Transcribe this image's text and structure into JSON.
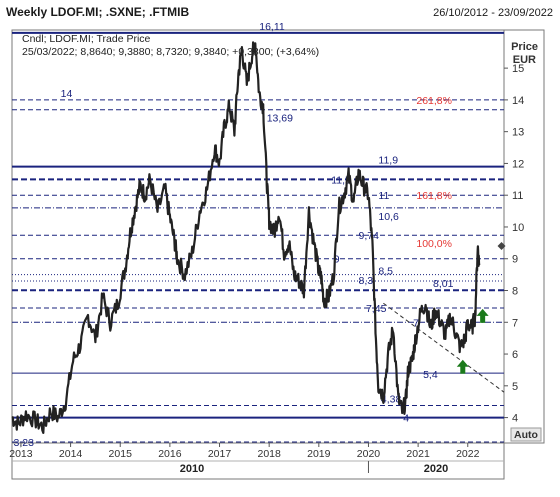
{
  "header": {
    "title": "Weekly LDOF.MI; .SXNE; .FTMIB",
    "date_range": "26/10/2012 - 23/09/2022"
  },
  "legend": {
    "line1": "Cndl; LDOF.MI; Trade Price",
    "line2": "25/03/2022; 8,8640; 9,3880; 8,7320; 9,3840; +0,3300; (+3,64%)"
  },
  "axis": {
    "y_title_1": "Price",
    "y_title_2": "EUR",
    "auto_label": "Auto"
  },
  "colors": {
    "background": "#ffffff",
    "frame": "#7a7a7a",
    "price_line": "#222222",
    "level_line": "#1a237e",
    "level_label": "#1a237e",
    "fib_label": "#e53935",
    "arrow": "#1b7a1b",
    "diamond": "#444444",
    "trendline": "#333333"
  },
  "chart_data": {
    "type": "line",
    "title": "Weekly LDOF.MI; .SXNE; .FTMIB",
    "ylabel": "Price EUR",
    "ylim": [
      3.2,
      16.2
    ],
    "xlim": [
      2012.82,
      2022.73
    ],
    "y_ticks": [
      4,
      5,
      6,
      7,
      8,
      9,
      10,
      11,
      12,
      13,
      14,
      15
    ],
    "x_ticks": [
      {
        "x": 2013,
        "label": "2013"
      },
      {
        "x": 2014,
        "label": "2014"
      },
      {
        "x": 2015,
        "label": "2015"
      },
      {
        "x": 2016,
        "label": "2016"
      },
      {
        "x": 2017,
        "label": "2017"
      },
      {
        "x": 2018,
        "label": "2018"
      },
      {
        "x": 2019,
        "label": "2019"
      },
      {
        "x": 2020,
        "label": "2020"
      },
      {
        "x": 2021,
        "label": "2021"
      },
      {
        "x": 2022,
        "label": "2022"
      }
    ],
    "x_major_labels": [
      {
        "x": 2010,
        "label": "2010"
      },
      {
        "x": 2020,
        "label": "2020"
      }
    ],
    "series": [
      {
        "x": [
          2012.82,
          2012.95,
          2013.1,
          2013.3,
          2013.45,
          2013.6,
          2013.75,
          2013.9,
          2014.05,
          2014.2,
          2014.35,
          2014.5,
          2014.65,
          2014.8,
          2014.95,
          2015.1,
          2015.2,
          2015.3,
          2015.4,
          2015.5,
          2015.6,
          2015.75,
          2015.9,
          2016.0,
          2016.1,
          2016.15,
          2016.3,
          2016.45,
          2016.6,
          2016.75,
          2016.9,
          2017.0,
          2017.1,
          2017.2,
          2017.3,
          2017.38,
          2017.45,
          2017.55,
          2017.65,
          2017.72,
          2017.8,
          2017.88,
          2017.95,
          2018.0,
          2018.1,
          2018.2,
          2018.3,
          2018.4,
          2018.5,
          2018.6,
          2018.7,
          2018.8,
          2018.9,
          2019.0,
          2019.05,
          2019.1,
          2019.2,
          2019.3,
          2019.4,
          2019.5,
          2019.6,
          2019.7,
          2019.8,
          2019.9,
          2020.0,
          2020.08,
          2020.15,
          2020.2,
          2020.3,
          2020.4,
          2020.5,
          2020.6,
          2020.68,
          2020.75,
          2020.8,
          2020.88,
          2020.95,
          2021.05,
          2021.15,
          2021.25,
          2021.35,
          2021.45,
          2021.55,
          2021.65,
          2021.75,
          2021.85,
          2021.95,
          2022.0,
          2022.08,
          2022.15,
          2022.2,
          2022.23
        ],
        "y": [
          4.0,
          3.8,
          4.1,
          3.9,
          3.7,
          4.2,
          4.0,
          4.5,
          5.8,
          6.3,
          7.2,
          6.5,
          7.8,
          7.0,
          7.6,
          8.7,
          9.8,
          10.6,
          11.3,
          11.0,
          11.5,
          10.5,
          11.2,
          10.3,
          9.5,
          9.0,
          8.5,
          9.2,
          10.5,
          11.2,
          12.5,
          12.0,
          13.2,
          13.8,
          13.0,
          14.8,
          15.6,
          14.5,
          15.4,
          15.8,
          14.2,
          13.8,
          11.5,
          10.2,
          9.8,
          10.5,
          9.2,
          9.5,
          8.5,
          8.3,
          8.0,
          10.5,
          9.5,
          8.6,
          8.4,
          7.7,
          7.8,
          8.5,
          10.6,
          11.0,
          11.6,
          10.8,
          11.7,
          11.3,
          11.0,
          9.4,
          6.5,
          5.0,
          4.7,
          6.0,
          6.8,
          4.6,
          4.2,
          4.5,
          5.5,
          5.8,
          6.5,
          7.3,
          7.6,
          6.8,
          7.4,
          7.0,
          6.6,
          7.2,
          6.7,
          6.2,
          6.5,
          7.0,
          6.8,
          7.2,
          9.4,
          8.8
        ]
      }
    ],
    "levels": [
      {
        "y": 16.11,
        "label": "16,11",
        "style": "thick"
      },
      {
        "y": 14.0,
        "label": "14",
        "style": "dash"
      },
      {
        "y": 13.69,
        "label": "13,69",
        "style": "dash"
      },
      {
        "y": 11.9,
        "label": "11,9",
        "style": "thick"
      },
      {
        "y": 11.5,
        "label": "11,5",
        "style": "thickdash"
      },
      {
        "y": 11.0,
        "label": "11",
        "style": "dash"
      },
      {
        "y": 10.6,
        "label": "10,6",
        "style": "dashdot"
      },
      {
        "y": 9.74,
        "label": "9,74",
        "style": "dash"
      },
      {
        "y": 9.0,
        "label": "9",
        "style": "dash"
      },
      {
        "y": 8.5,
        "label": "8,5",
        "style": "dot"
      },
      {
        "y": 8.3,
        "label": "8,3",
        "style": "dot"
      },
      {
        "y": 8.01,
        "label": "8,01",
        "style": "thickdash"
      },
      {
        "y": 7.45,
        "label": "7,45",
        "style": "dash"
      },
      {
        "y": 7.0,
        "label": "7",
        "style": "dashdot"
      },
      {
        "y": 5.4,
        "label": "5,4",
        "style": "solid"
      },
      {
        "y": 4.38,
        "label": "4,38",
        "style": "dash"
      },
      {
        "y": 4.0,
        "label": "4",
        "style": "thick"
      },
      {
        "y": 3.23,
        "label": "3,23",
        "style": "dash"
      }
    ],
    "fib_labels": [
      {
        "y": 14.0,
        "label": "261,8%"
      },
      {
        "y": 11.0,
        "label": "161,8%"
      },
      {
        "y": 9.5,
        "label": "100,0%"
      }
    ],
    "trendline": {
      "x": [
        2020.3,
        2022.73
      ],
      "y": [
        7.6,
        4.8
      ]
    },
    "arrows": [
      {
        "x": 2021.9,
        "y": 5.6
      },
      {
        "x": 2022.3,
        "y": 7.2
      }
    ],
    "diamond": {
      "x": 2022.68,
      "y": 9.4
    }
  }
}
